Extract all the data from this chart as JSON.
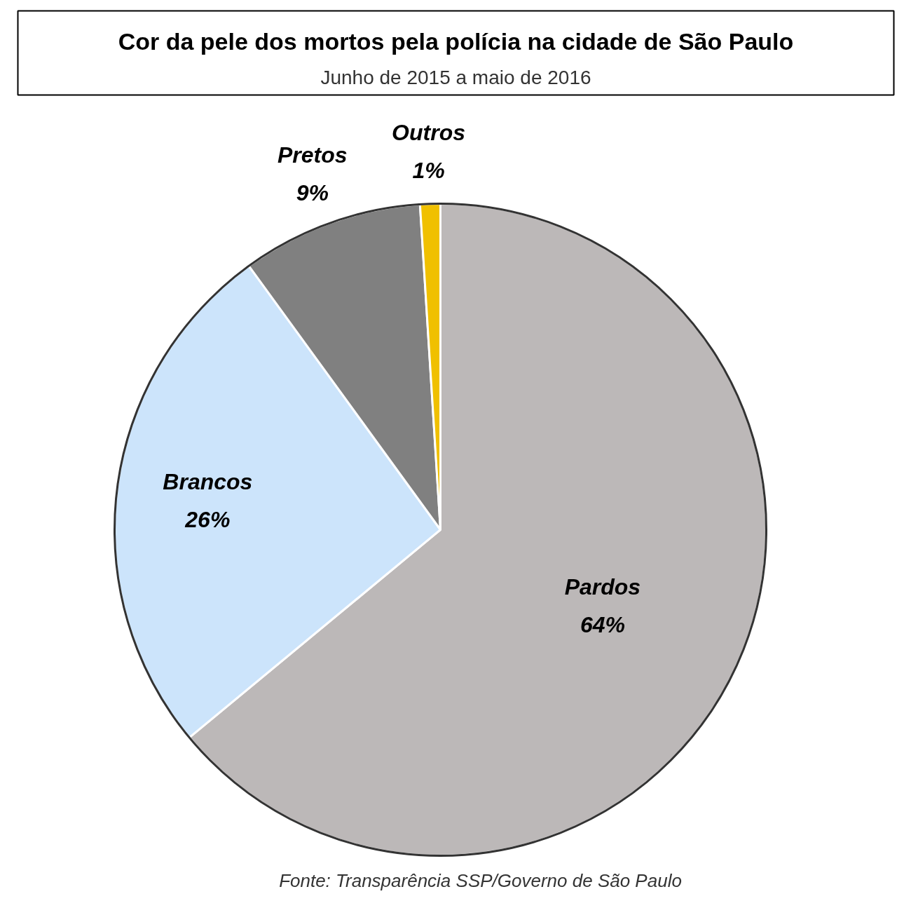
{
  "chart_data": {
    "type": "pie",
    "title": "Cor da pele dos mortos pela polícia na cidade de São Paulo",
    "subtitle": "Junho de 2015 a maio de 2016",
    "categories": [
      "Pardos",
      "Brancos",
      "Pretos",
      "Outros"
    ],
    "values": [
      64,
      26,
      9,
      1
    ],
    "value_labels": [
      "64%",
      "26%",
      "9%",
      "1%"
    ],
    "colors": [
      "#bcb8b8",
      "#cce4fb",
      "#808080",
      "#f0c000"
    ],
    "annotations": [
      "Fonte: Transparência SSP/Governo de São Paulo"
    ]
  }
}
